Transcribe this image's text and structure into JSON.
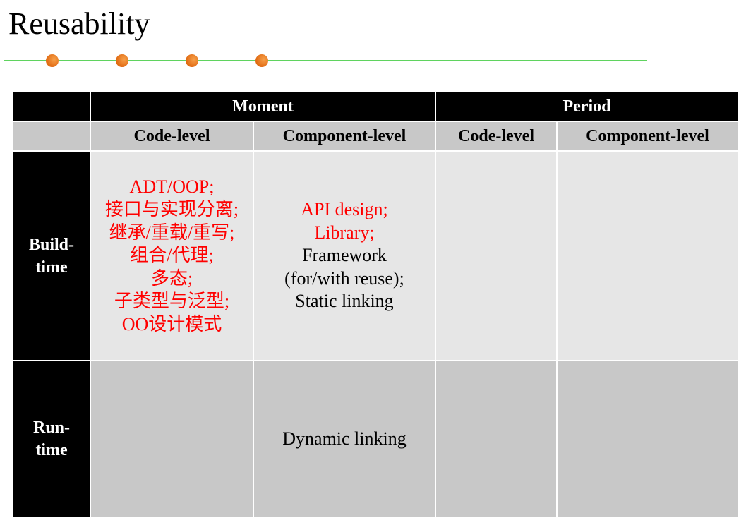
{
  "title": "Reusability",
  "colors": {
    "accent_line": "#5fd35f",
    "dot": "#e87a22",
    "highlight_text": "#ff0000"
  },
  "table": {
    "group_headers": [
      "Moment",
      "Period"
    ],
    "sub_headers": [
      "Code-level",
      "Component-level",
      "Code-level",
      "Component-level"
    ],
    "rows": [
      {
        "label_lines": [
          "Build-",
          "time"
        ],
        "cells": [
          {
            "lines": [
              {
                "text": "ADT/OOP;",
                "highlight": true
              },
              {
                "text": "接口与实现分离;",
                "highlight": true
              },
              {
                "text": "继承/重载/重写;",
                "highlight": true
              },
              {
                "text": "组合/代理;",
                "highlight": true
              },
              {
                "text": "多态;",
                "highlight": true
              },
              {
                "text": "子类型与泛型;",
                "highlight": true
              },
              {
                "text": "OO设计模式",
                "highlight": true
              }
            ]
          },
          {
            "lines": [
              {
                "text": "API design;",
                "highlight": true
              },
              {
                "text": "Library;",
                "highlight": true
              },
              {
                "text": "Framework",
                "highlight": false
              },
              {
                "text": "(for/with reuse);",
                "highlight": false
              },
              {
                "text": "Static linking",
                "highlight": false
              }
            ]
          },
          {
            "lines": []
          },
          {
            "lines": []
          }
        ]
      },
      {
        "label_lines": [
          "Run-",
          "time"
        ],
        "cells": [
          {
            "lines": []
          },
          {
            "lines": [
              {
                "text": "Dynamic linking",
                "highlight": false
              }
            ]
          },
          {
            "lines": []
          },
          {
            "lines": []
          }
        ]
      }
    ]
  }
}
